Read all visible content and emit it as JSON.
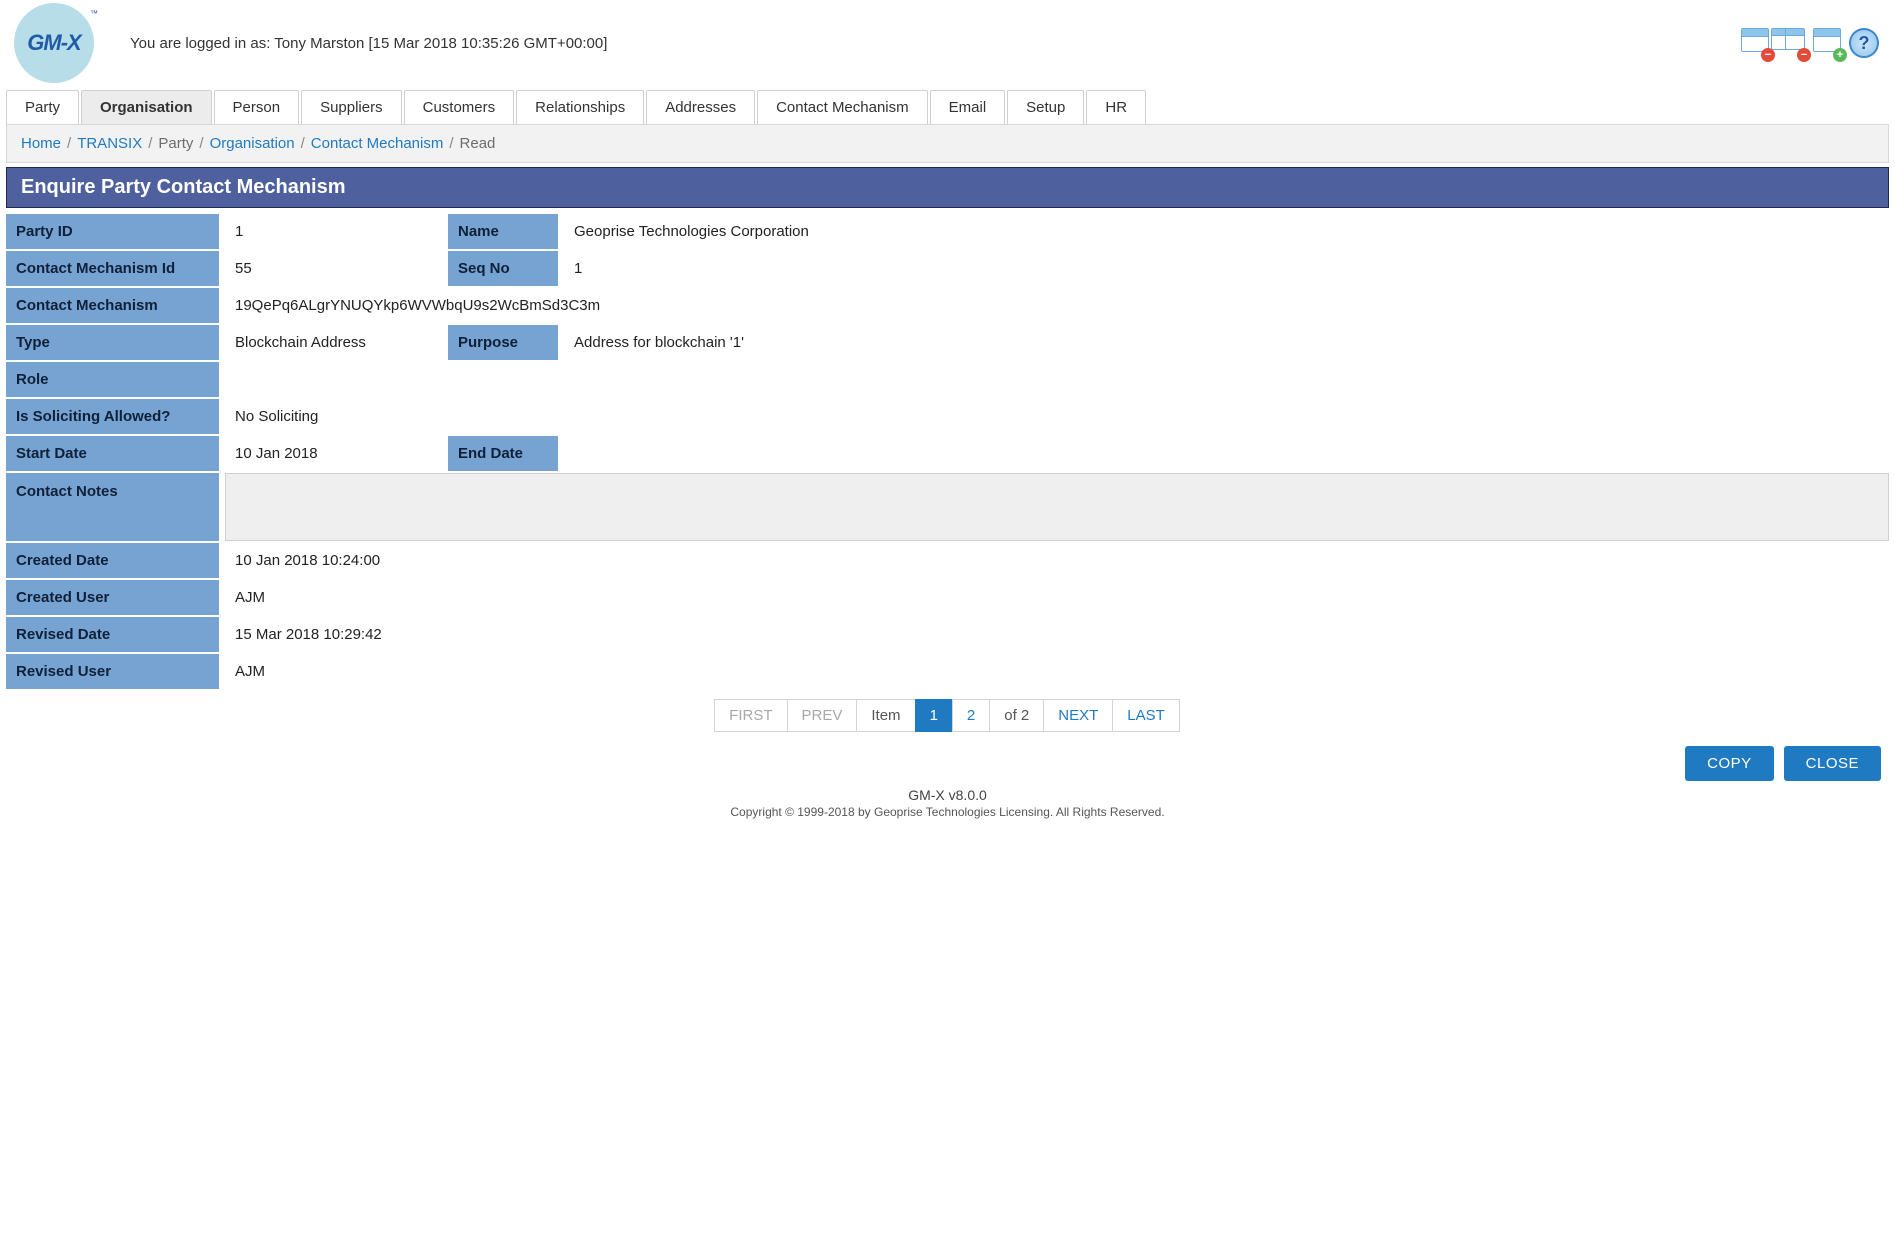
{
  "colors": {
    "accent_blue": "#1f7ac1",
    "label_bg": "#77a3d2",
    "panel_title_bg": "#4f609f",
    "breadcrumb_bg": "#f2f2f2",
    "tab_active_bg": "#ececec"
  },
  "header": {
    "logo_text": "GM-X",
    "login_message": "You are logged in as: Tony Marston [15 Mar 2018 10:35:26 GMT+00:00]"
  },
  "tabs": [
    {
      "label": "Party",
      "active": false
    },
    {
      "label": "Organisation",
      "active": true
    },
    {
      "label": "Person",
      "active": false
    },
    {
      "label": "Suppliers",
      "active": false
    },
    {
      "label": "Customers",
      "active": false
    },
    {
      "label": "Relationships",
      "active": false
    },
    {
      "label": "Addresses",
      "active": false
    },
    {
      "label": "Contact Mechanism",
      "active": false
    },
    {
      "label": "Email",
      "active": false
    },
    {
      "label": "Setup",
      "active": false
    },
    {
      "label": "HR",
      "active": false
    }
  ],
  "breadcrumb": [
    {
      "label": "Home",
      "link": true
    },
    {
      "label": "TRANSIX",
      "link": true
    },
    {
      "label": "Party",
      "link": false
    },
    {
      "label": "Organisation",
      "link": true
    },
    {
      "label": "Contact Mechanism",
      "link": true
    },
    {
      "label": "Read",
      "link": false
    }
  ],
  "panel_title": "Enquire Party Contact Mechanism",
  "form": {
    "party_id": {
      "label": "Party ID",
      "value": "1"
    },
    "name": {
      "label": "Name",
      "value": "Geoprise Technologies Corporation"
    },
    "contact_mech_id": {
      "label": "Contact Mechanism Id",
      "value": "55"
    },
    "seq_no": {
      "label": "Seq No",
      "value": "1"
    },
    "contact_mech": {
      "label": "Contact Mechanism",
      "value": "19QePq6ALgrYNUQYkp6WVWbqU9s2WcBmSd3C3m"
    },
    "type": {
      "label": "Type",
      "value": "Blockchain Address"
    },
    "purpose": {
      "label": "Purpose",
      "value": "Address for blockchain '1'"
    },
    "role": {
      "label": "Role",
      "value": ""
    },
    "soliciting": {
      "label": "Is Soliciting Allowed?",
      "value": "No Soliciting"
    },
    "start_date": {
      "label": "Start Date",
      "value": "10 Jan 2018"
    },
    "end_date": {
      "label": "End Date",
      "value": ""
    },
    "contact_notes": {
      "label": "Contact Notes",
      "value": ""
    },
    "created_date": {
      "label": "Created Date",
      "value": "10 Jan 2018 10:24:00"
    },
    "created_user": {
      "label": "Created User",
      "value": "AJM"
    },
    "revised_date": {
      "label": "Revised Date",
      "value": "15 Mar 2018 10:29:42"
    },
    "revised_user": {
      "label": "Revised User",
      "value": "AJM"
    }
  },
  "pager": {
    "first": "FIRST",
    "prev": "PREV",
    "item_label": "Item",
    "pages": [
      "1",
      "2"
    ],
    "active_page": "1",
    "of_text": "of 2",
    "next": "NEXT",
    "last": "LAST"
  },
  "actions": {
    "copy": "COPY",
    "close": "CLOSE"
  },
  "footer": {
    "version": "GM-X v8.0.0",
    "copyright": "Copyright © 1999-2018 by Geoprise Technologies Licensing. All Rights Reserved."
  }
}
